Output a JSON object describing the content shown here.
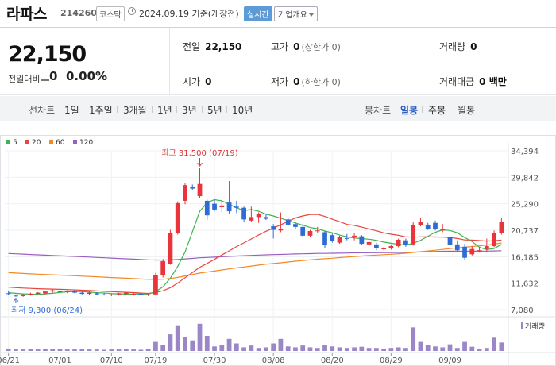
{
  "header": {
    "stock_name": "라파스",
    "stock_code": "214260",
    "market": "코스닥",
    "date": "2024.09.19",
    "date_note": "기준(개장전)",
    "realtime_label": "실시간",
    "company_info_label": "기업개요"
  },
  "price": {
    "current": "22,150",
    "change_label": "전일대비",
    "change": "0",
    "change_pct": "0.00%"
  },
  "stats": {
    "prev_label": "전일",
    "prev_value": "22,150",
    "high_label": "고가",
    "high_value": "0",
    "high_limit": "(상한가 0)",
    "volume_label": "거래량",
    "volume_value": "0",
    "open_label": "시가",
    "open_value": "0",
    "low_label": "저가",
    "low_value": "0",
    "low_limit": "(하한가 0)",
    "amount_label": "거래대금",
    "amount_value": "0 백만"
  },
  "period_bar": {
    "line_label": "선차트",
    "line_periods": [
      "1일",
      "1주일",
      "3개월",
      "1년",
      "3년",
      "5년",
      "10년"
    ],
    "candle_label": "봉차트",
    "candle_periods": [
      "일봉",
      "주봉",
      "월봉"
    ],
    "selected": "일봉"
  },
  "chart_data": {
    "type": "candlestick",
    "legend": [
      {
        "name": "5",
        "color": "#3fb34f"
      },
      {
        "name": "20",
        "color": "#e8473f"
      },
      {
        "name": "60",
        "color": "#f08a24"
      },
      {
        "name": "120",
        "color": "#9a5fc2"
      }
    ],
    "y_ticks": [
      "34,394",
      "29,842",
      "25,290",
      "20,737",
      "16,185",
      "11,632",
      "7,080"
    ],
    "ylim": [
      7080,
      34394
    ],
    "x_ticks": [
      "06/21",
      "07/01",
      "07/10",
      "07/19",
      "07/30",
      "08/08",
      "08/20",
      "08/29",
      "09/09"
    ],
    "high_annotation": "최고 31,500 (07/19)",
    "low_annotation": "최저 9,300 (06/24)",
    "volume_label": "거래량",
    "candles": [
      {
        "o": 9900,
        "h": 10300,
        "l": 9600,
        "c": 9800
      },
      {
        "o": 9500,
        "h": 9700,
        "l": 9300,
        "c": 9400
      },
      {
        "o": 9400,
        "h": 9800,
        "l": 9300,
        "c": 9700
      },
      {
        "o": 9700,
        "h": 10000,
        "l": 9500,
        "c": 9800
      },
      {
        "o": 9800,
        "h": 10100,
        "l": 9600,
        "c": 10000
      },
      {
        "o": 9900,
        "h": 10300,
        "l": 9700,
        "c": 10200
      },
      {
        "o": 10200,
        "h": 10600,
        "l": 10000,
        "c": 10400
      },
      {
        "o": 10300,
        "h": 10600,
        "l": 10000,
        "c": 10100
      },
      {
        "o": 10100,
        "h": 10400,
        "l": 9900,
        "c": 10300
      },
      {
        "o": 10300,
        "h": 10500,
        "l": 9900,
        "c": 10000
      },
      {
        "o": 10000,
        "h": 10300,
        "l": 9700,
        "c": 9800
      },
      {
        "o": 9800,
        "h": 10200,
        "l": 9600,
        "c": 10000
      },
      {
        "o": 9900,
        "h": 10100,
        "l": 9600,
        "c": 9700
      },
      {
        "o": 9700,
        "h": 9900,
        "l": 9500,
        "c": 9600
      },
      {
        "o": 9600,
        "h": 9800,
        "l": 9400,
        "c": 9700
      },
      {
        "o": 9700,
        "h": 10000,
        "l": 9500,
        "c": 9900
      },
      {
        "o": 9800,
        "h": 10100,
        "l": 9600,
        "c": 10000
      },
      {
        "o": 9700,
        "h": 10000,
        "l": 9500,
        "c": 9800
      },
      {
        "o": 9800,
        "h": 9900,
        "l": 9400,
        "c": 9600
      },
      {
        "o": 9600,
        "h": 9800,
        "l": 9400,
        "c": 9700
      },
      {
        "o": 9700,
        "h": 13400,
        "l": 9600,
        "c": 13000
      },
      {
        "o": 13000,
        "h": 15800,
        "l": 12600,
        "c": 15400
      },
      {
        "o": 15000,
        "h": 20800,
        "l": 14800,
        "c": 20300
      },
      {
        "o": 20300,
        "h": 25700,
        "l": 20000,
        "c": 25400
      },
      {
        "o": 25800,
        "h": 28800,
        "l": 25200,
        "c": 28500
      },
      {
        "o": 28200,
        "h": 28600,
        "l": 27700,
        "c": 27900
      },
      {
        "o": 26600,
        "h": 31500,
        "l": 26300,
        "c": 28700
      },
      {
        "o": 25800,
        "h": 26000,
        "l": 22500,
        "c": 23300
      },
      {
        "o": 25300,
        "h": 26000,
        "l": 24000,
        "c": 24300
      },
      {
        "o": 24700,
        "h": 26000,
        "l": 23800,
        "c": 25000
      },
      {
        "o": 25500,
        "h": 29200,
        "l": 23600,
        "c": 24000
      },
      {
        "o": 24800,
        "h": 25800,
        "l": 23700,
        "c": 24600
      },
      {
        "o": 24600,
        "h": 24800,
        "l": 22100,
        "c": 22600
      },
      {
        "o": 22400,
        "h": 24800,
        "l": 22100,
        "c": 23000
      },
      {
        "o": 23000,
        "h": 23800,
        "l": 22000,
        "c": 23500
      },
      {
        "o": 23000,
        "h": 23600,
        "l": 22500,
        "c": 22700
      },
      {
        "o": 21400,
        "h": 21800,
        "l": 19300,
        "c": 20800
      },
      {
        "o": 20700,
        "h": 23800,
        "l": 20400,
        "c": 21000
      },
      {
        "o": 22600,
        "h": 22900,
        "l": 21500,
        "c": 21700
      },
      {
        "o": 21800,
        "h": 22100,
        "l": 21000,
        "c": 21300
      },
      {
        "o": 21300,
        "h": 21800,
        "l": 19500,
        "c": 19800
      },
      {
        "o": 19800,
        "h": 20800,
        "l": 19500,
        "c": 20600
      },
      {
        "o": 20600,
        "h": 21300,
        "l": 20300,
        "c": 20700
      },
      {
        "o": 20400,
        "h": 20600,
        "l": 17700,
        "c": 18200
      },
      {
        "o": 19900,
        "h": 20300,
        "l": 18600,
        "c": 18900
      },
      {
        "o": 18600,
        "h": 19800,
        "l": 18400,
        "c": 19500
      },
      {
        "o": 19400,
        "h": 20100,
        "l": 19000,
        "c": 19300
      },
      {
        "o": 19500,
        "h": 20200,
        "l": 19000,
        "c": 19800
      },
      {
        "o": 19700,
        "h": 19900,
        "l": 18200,
        "c": 18400
      },
      {
        "o": 18300,
        "h": 19000,
        "l": 18000,
        "c": 18700
      },
      {
        "o": 18300,
        "h": 18600,
        "l": 17300,
        "c": 17600
      },
      {
        "o": 17500,
        "h": 17800,
        "l": 17300,
        "c": 17600
      },
      {
        "o": 17600,
        "h": 18300,
        "l": 17400,
        "c": 18000
      },
      {
        "o": 18000,
        "h": 19300,
        "l": 17800,
        "c": 19100
      },
      {
        "o": 19000,
        "h": 19300,
        "l": 17900,
        "c": 18200
      },
      {
        "o": 18300,
        "h": 22100,
        "l": 18100,
        "c": 21700
      },
      {
        "o": 21600,
        "h": 22900,
        "l": 21400,
        "c": 22100
      },
      {
        "o": 21700,
        "h": 22000,
        "l": 20800,
        "c": 21000
      },
      {
        "o": 22000,
        "h": 22400,
        "l": 20700,
        "c": 20900
      },
      {
        "o": 20700,
        "h": 21800,
        "l": 20400,
        "c": 21000
      },
      {
        "o": 19500,
        "h": 19800,
        "l": 17800,
        "c": 18200
      },
      {
        "o": 18300,
        "h": 19000,
        "l": 17000,
        "c": 17300
      },
      {
        "o": 17900,
        "h": 18400,
        "l": 15600,
        "c": 16000
      },
      {
        "o": 16600,
        "h": 18000,
        "l": 16400,
        "c": 17500
      },
      {
        "o": 17200,
        "h": 17800,
        "l": 16900,
        "c": 17300
      },
      {
        "o": 17500,
        "h": 19300,
        "l": 17000,
        "c": 18000
      },
      {
        "o": 18000,
        "h": 20700,
        "l": 17800,
        "c": 20300
      },
      {
        "o": 20300,
        "h": 22800,
        "l": 20000,
        "c": 22150
      }
    ],
    "volume_levels": [
      0.08,
      0.06,
      0.05,
      0.06,
      0.05,
      0.06,
      0.07,
      0.06,
      0.05,
      0.05,
      0.06,
      0.05,
      0.05,
      0.04,
      0.05,
      0.05,
      0.06,
      0.05,
      0.04,
      0.06,
      0.3,
      0.2,
      0.55,
      0.85,
      0.45,
      0.35,
      0.9,
      0.5,
      0.15,
      0.2,
      0.4,
      0.25,
      0.12,
      0.18,
      0.1,
      0.12,
      0.25,
      0.4,
      0.15,
      0.12,
      0.18,
      0.12,
      0.1,
      0.2,
      0.15,
      0.12,
      0.1,
      0.12,
      0.14,
      0.1,
      0.1,
      0.08,
      0.1,
      0.12,
      0.1,
      0.78,
      0.3,
      0.2,
      0.15,
      0.12,
      0.22,
      0.1,
      0.3,
      0.14,
      0.08,
      0.1,
      0.44,
      0.28
    ],
    "ma5": [
      10000,
      9900,
      9800,
      9750,
      9700,
      9800,
      9900,
      10050,
      10150,
      10200,
      10200,
      10100,
      10000,
      9950,
      9850,
      9800,
      9750,
      9750,
      9800,
      9750,
      10200,
      11000,
      12500,
      14500,
      17000,
      20500,
      24000,
      25500,
      26000,
      25800,
      25200,
      24600,
      24100,
      24300,
      24000,
      23500,
      23200,
      22800,
      22400,
      22000,
      21600,
      21200,
      21000,
      20600,
      20300,
      19900,
      19600,
      19400,
      19300,
      19200,
      19000,
      18700,
      18500,
      18300,
      18200,
      18500,
      19000,
      19700,
      20400,
      20800,
      20700,
      20300,
      19500,
      18800,
      17800,
      17400,
      17600,
      18300
    ]
  }
}
